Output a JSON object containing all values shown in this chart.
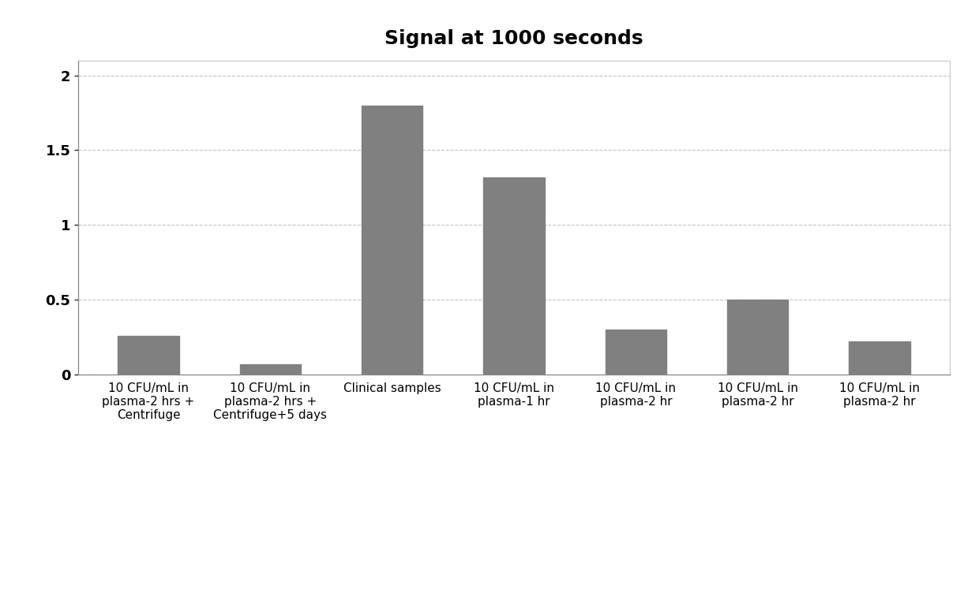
{
  "title": "Signal at 1000 seconds",
  "categories": [
    "10 CFU/mL in\nplasma-2 hrs +\nCentrifuge",
    "10 CFU/mL in\nplasma-2 hrs +\nCentrifuge+5 days",
    "Clinical samples",
    "10 CFU/mL in\nplasma-1 hr",
    "10 CFU/mL in\nplasma-2 hr",
    "10 CFU/mL in\nplasma-2 hr",
    "10 CFU/mL in\nplasma-2 hr"
  ],
  "values": [
    0.26,
    0.07,
    1.8,
    1.32,
    0.3,
    0.5,
    0.22
  ],
  "bar_color": "#808080",
  "ylim": [
    0,
    2.1
  ],
  "yticks": [
    0,
    0.5,
    1,
    1.5,
    2
  ],
  "title_fontsize": 18,
  "tick_fontsize": 11,
  "background_color": "#ffffff",
  "grid_color": "#aaaaaa"
}
